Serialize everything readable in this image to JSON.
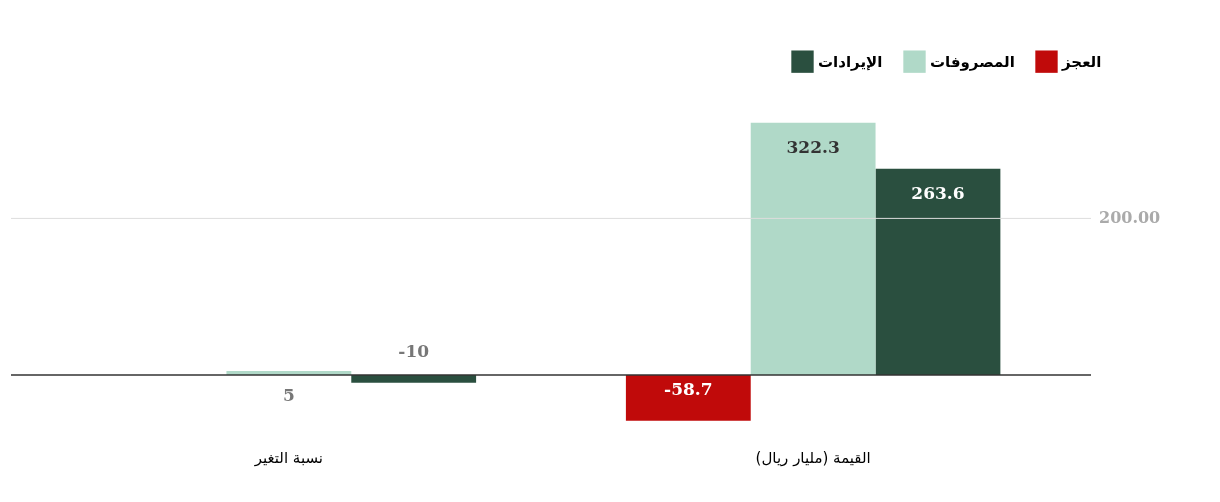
{
  "chart_data": {
    "type": "bar",
    "categories": [
      "نسبة التغير",
      "القيمة (مليار ريال)"
    ],
    "series": [
      {
        "name": "الإيرادات",
        "color": "#2a4f3f",
        "values": [
          -10,
          263.6
        ]
      },
      {
        "name": "المصروفات",
        "color": "#b0d9c8",
        "values": [
          5,
          322.3
        ]
      },
      {
        "name": "العجز",
        "color": "#c00a0a",
        "values": [
          null,
          -58.7
        ]
      }
    ],
    "ref_lines": [
      {
        "axis": "y",
        "value": 200,
        "label": "200.00",
        "color": "#dddddd"
      }
    ],
    "legend": "top right",
    "data_labels": true
  }
}
